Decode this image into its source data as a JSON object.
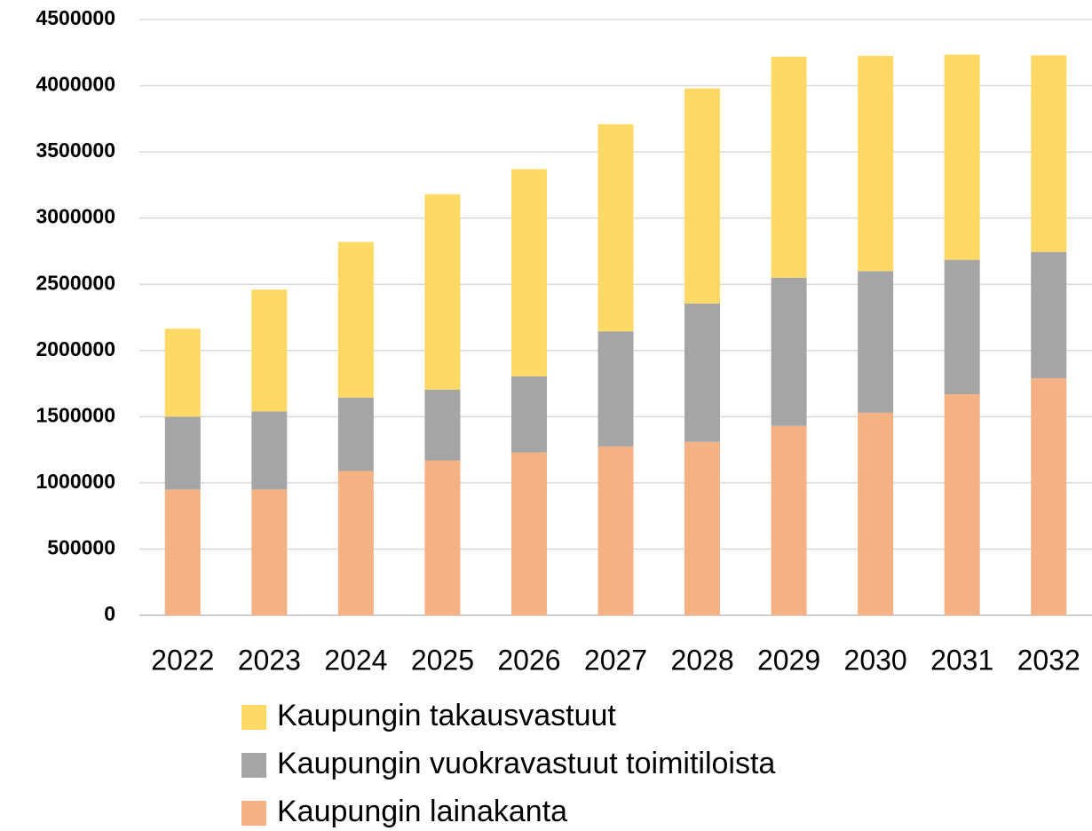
{
  "chart_data": {
    "type": "stacked_bar",
    "categories": [
      "2022",
      "2023",
      "2024",
      "2025",
      "2026",
      "2027",
      "2028",
      "2029",
      "2030",
      "2031",
      "2032"
    ],
    "series": [
      {
        "name": "Kaupungin lainakanta",
        "color": "#f4b183",
        "values": [
          950000,
          950000,
          1090000,
          1170000,
          1230000,
          1275000,
          1310000,
          1430000,
          1530000,
          1670000,
          1790000
        ]
      },
      {
        "name": "Kaupungin vuokravastuut toimitiloista",
        "color": "#a5a5a5",
        "values": [
          550000,
          590000,
          555000,
          535000,
          575000,
          870000,
          1045000,
          1120000,
          1070000,
          1015000,
          955000
        ]
      },
      {
        "name": "Kaupungin takausvastuut",
        "color": "#ffd966",
        "values": [
          665000,
          920000,
          1175000,
          1475000,
          1565000,
          1565000,
          1625000,
          1670000,
          1625000,
          1550000,
          1485000
        ]
      }
    ],
    "ylim": [
      0,
      4500000
    ],
    "yticks": [
      0,
      500000,
      1000000,
      1500000,
      2000000,
      2500000,
      3000000,
      3500000,
      4000000,
      4500000
    ],
    "grid": true
  }
}
